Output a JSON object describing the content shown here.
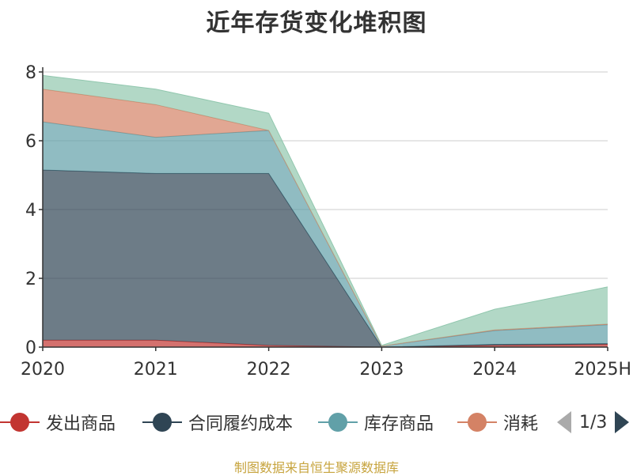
{
  "chart_data": {
    "type": "area",
    "stacked": true,
    "title": "近年存货变化堆积图",
    "ylabel": "",
    "x": [
      "2020",
      "2021",
      "2022",
      "2023",
      "2024",
      "2025H"
    ],
    "ylim": [
      0,
      8
    ],
    "yticks": [
      0,
      2,
      4,
      6,
      8
    ],
    "grid": true,
    "series": [
      {
        "name": "发出商品",
        "color": "#c23531",
        "values": [
          0.2,
          0.2,
          0.05,
          0,
          0.05,
          0.08
        ]
      },
      {
        "name": "合同履约成本",
        "color": "#2f4554",
        "values": [
          4.95,
          4.85,
          5.0,
          0,
          0.03,
          0.02
        ]
      },
      {
        "name": "库存商品",
        "color": "#61a0a8",
        "values": [
          1.4,
          1.05,
          1.25,
          0.03,
          0.4,
          0.55
        ]
      },
      {
        "name": "消耗",
        "color": "#d48265",
        "values": [
          0.95,
          0.95,
          0.0,
          0,
          0.02,
          0.02
        ]
      },
      {
        "name": "",
        "color": "#91c7ae",
        "values": [
          0.4,
          0.45,
          0.5,
          0.02,
          0.6,
          1.08
        ]
      }
    ]
  },
  "legend": {
    "items": [
      {
        "label": "发出商品",
        "color": "#c23531"
      },
      {
        "label": "合同履约成本",
        "color": "#2f4554"
      },
      {
        "label": "库存商品",
        "color": "#61a0a8"
      },
      {
        "label": "消耗",
        "color": "#d48265"
      }
    ],
    "page": "1/3"
  },
  "source": "制图数据来自恒生聚源数据库"
}
